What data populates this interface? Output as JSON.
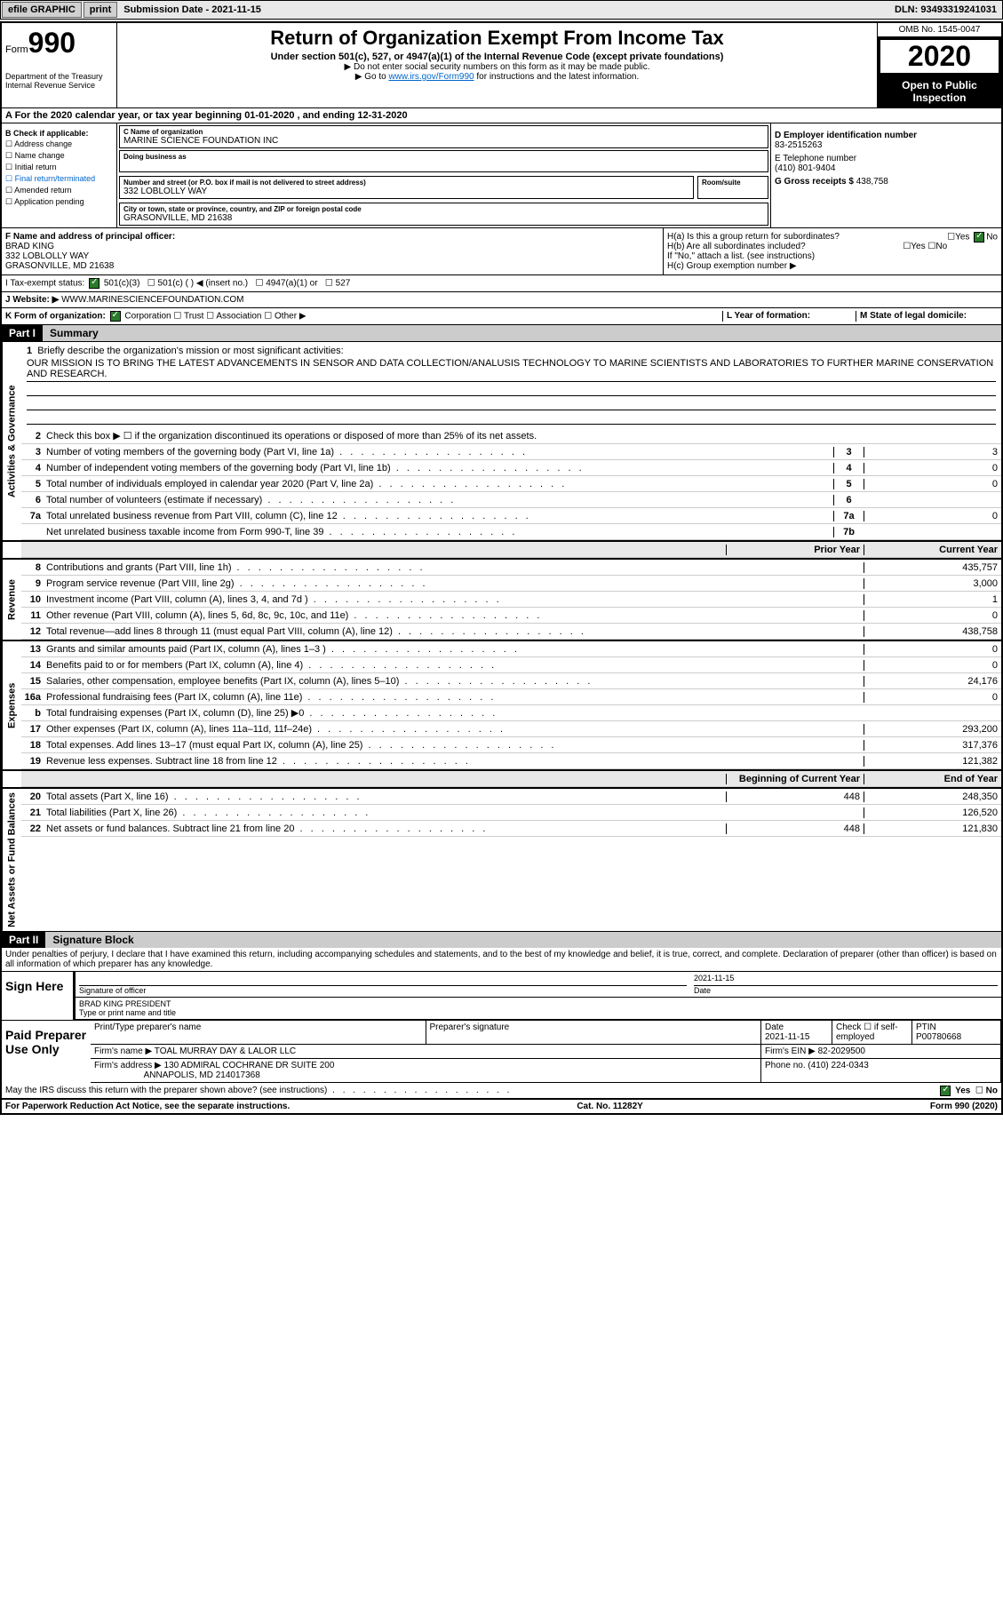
{
  "topbar": {
    "efile": "efile GRAPHIC",
    "print": "print",
    "sub_label": "Submission Date - 2021-11-15",
    "dln": "DLN: 93493319241031"
  },
  "header": {
    "form": "990",
    "form_prefix": "Form",
    "title": "Return of Organization Exempt From Income Tax",
    "subtitle": "Under section 501(c), 527, or 4947(a)(1) of the Internal Revenue Code (except private foundations)",
    "note1": "▶ Do not enter social security numbers on this form as it may be made public.",
    "note2_pre": "▶ Go to ",
    "note2_link": "www.irs.gov/Form990",
    "note2_post": " for instructions and the latest information.",
    "dept": "Department of the Treasury\nInternal Revenue Service",
    "omb": "OMB No. 1545-0047",
    "year": "2020",
    "open_pub": "Open to Public Inspection"
  },
  "row_a": "A For the 2020 calendar year, or tax year beginning 01-01-2020    , and ending 12-31-2020",
  "col_b": {
    "head": "B Check if applicable:",
    "items": [
      "Address change",
      "Name change",
      "Initial return",
      "Final return/terminated",
      "Amended return",
      "Application pending"
    ]
  },
  "col_c": {
    "name_label": "C Name of organization",
    "name": "MARINE SCIENCE FOUNDATION INC",
    "dba_label": "Doing business as",
    "addr_label": "Number and street (or P.O. box if mail is not delivered to street address)",
    "room_label": "Room/suite",
    "addr": "332 LOBLOLLY WAY",
    "city_label": "City or town, state or province, country, and ZIP or foreign postal code",
    "city": "GRASONVILLE, MD  21638"
  },
  "col_right": {
    "d_label": "D Employer identification number",
    "d_val": "83-2515263",
    "e_label": "E Telephone number",
    "e_val": "(410) 801-9404",
    "g_label": "G Gross receipts $ ",
    "g_val": "438,758"
  },
  "row_f": {
    "f_label": "F  Name and address of principal officer:",
    "f_name": "BRAD KING",
    "f_addr1": "332 LOBLOLLY WAY",
    "f_addr2": "GRASONVILLE, MD  21638",
    "ha": "H(a)  Is this a group return for subordinates?",
    "hb": "H(b)  Are all subordinates included?",
    "hb_note": "If \"No,\" attach a list. (see instructions)",
    "hc": "H(c)  Group exemption number ▶"
  },
  "status": {
    "i": "I    Tax-exempt status:",
    "opts": [
      "501(c)(3)",
      "501(c) (  ) ◀ (insert no.)",
      "4947(a)(1) or",
      "527"
    ],
    "j": "J    Website: ▶",
    "j_val": "WWW.MARINESCIENCEFOUNDATION.COM",
    "k": "K Form of organization:",
    "k_opts": [
      "Corporation",
      "Trust",
      "Association",
      "Other ▶"
    ],
    "l": "L Year of formation:",
    "m": "M State of legal domicile:"
  },
  "part1": {
    "part": "Part I",
    "title": "Summary",
    "q1": "Briefly describe the organization's mission or most significant activities:",
    "mission": "OUR MISSION IS TO BRING THE LATEST ADVANCEMENTS IN SENSOR AND DATA COLLECTION/ANALUSIS TECHNOLOGY TO MARINE SCIENTISTS AND LABORATORIES TO FURTHER MARINE CONSERVATION AND RESEARCH.",
    "q2": "Check this box ▶ ☐  if the organization discontinued its operations or disposed of more than 25% of its net assets.",
    "gov": "Activities & Governance",
    "rev": "Revenue",
    "exp": "Expenses",
    "net": "Net Assets or Fund Balances",
    "lines_gov": [
      {
        "n": "3",
        "t": "Number of voting members of the governing body (Part VI, line 1a)",
        "box": "3",
        "v": "3"
      },
      {
        "n": "4",
        "t": "Number of independent voting members of the governing body (Part VI, line 1b)",
        "box": "4",
        "v": "0"
      },
      {
        "n": "5",
        "t": "Total number of individuals employed in calendar year 2020 (Part V, line 2a)",
        "box": "5",
        "v": "0"
      },
      {
        "n": "6",
        "t": "Total number of volunteers (estimate if necessary)",
        "box": "6",
        "v": ""
      },
      {
        "n": "7a",
        "t": "Total unrelated business revenue from Part VIII, column (C), line 12",
        "box": "7a",
        "v": "0"
      },
      {
        "n": "",
        "t": "Net unrelated business taxable income from Form 990-T, line 39",
        "box": "7b",
        "v": ""
      }
    ],
    "col_hdr": {
      "py": "Prior Year",
      "cy": "Current Year",
      "by": "Beginning of Current Year",
      "ey": "End of Year"
    },
    "lines_rev": [
      {
        "n": "8",
        "t": "Contributions and grants (Part VIII, line 1h)",
        "py": "",
        "cy": "435,757"
      },
      {
        "n": "9",
        "t": "Program service revenue (Part VIII, line 2g)",
        "py": "",
        "cy": "3,000"
      },
      {
        "n": "10",
        "t": "Investment income (Part VIII, column (A), lines 3, 4, and 7d )",
        "py": "",
        "cy": "1"
      },
      {
        "n": "11",
        "t": "Other revenue (Part VIII, column (A), lines 5, 6d, 8c, 9c, 10c, and 11e)",
        "py": "",
        "cy": "0"
      },
      {
        "n": "12",
        "t": "Total revenue—add lines 8 through 11 (must equal Part VIII, column (A), line 12)",
        "py": "",
        "cy": "438,758"
      }
    ],
    "lines_exp": [
      {
        "n": "13",
        "t": "Grants and similar amounts paid (Part IX, column (A), lines 1–3 )",
        "py": "",
        "cy": "0"
      },
      {
        "n": "14",
        "t": "Benefits paid to or for members (Part IX, column (A), line 4)",
        "py": "",
        "cy": "0"
      },
      {
        "n": "15",
        "t": "Salaries, other compensation, employee benefits (Part IX, column (A), lines 5–10)",
        "py": "",
        "cy": "24,176"
      },
      {
        "n": "16a",
        "t": "Professional fundraising fees (Part IX, column (A), line 11e)",
        "py": "",
        "cy": "0"
      },
      {
        "n": "b",
        "t": "Total fundraising expenses (Part IX, column (D), line 25) ▶0",
        "py": "grey",
        "cy": "grey"
      },
      {
        "n": "17",
        "t": "Other expenses (Part IX, column (A), lines 11a–11d, 11f–24e)",
        "py": "",
        "cy": "293,200"
      },
      {
        "n": "18",
        "t": "Total expenses. Add lines 13–17 (must equal Part IX, column (A), line 25)",
        "py": "",
        "cy": "317,376"
      },
      {
        "n": "19",
        "t": "Revenue less expenses. Subtract line 18 from line 12",
        "py": "",
        "cy": "121,382"
      }
    ],
    "lines_net": [
      {
        "n": "20",
        "t": "Total assets (Part X, line 16)",
        "py": "448",
        "cy": "248,350"
      },
      {
        "n": "21",
        "t": "Total liabilities (Part X, line 26)",
        "py": "",
        "cy": "126,520"
      },
      {
        "n": "22",
        "t": "Net assets or fund balances. Subtract line 21 from line 20",
        "py": "448",
        "cy": "121,830"
      }
    ]
  },
  "part2": {
    "part": "Part II",
    "title": "Signature Block",
    "declare": "Under penalties of perjury, I declare that I have examined this return, including accompanying schedules and statements, and to the best of my knowledge and belief, it is true, correct, and complete. Declaration of preparer (other than officer) is based on all information of which preparer has any knowledge.",
    "sign": "Sign Here",
    "sig_of": "Signature of officer",
    "date": "Date",
    "sig_date": "2021-11-15",
    "name_title": "BRAD KING  PRESIDENT",
    "type_label": "Type or print name and title",
    "paid": "Paid Preparer Use Only",
    "prep_name": "Print/Type preparer's name",
    "prep_sig": "Preparer's signature",
    "prep_date_lbl": "Date",
    "prep_date": "2021-11-15",
    "check_self": "Check ☐ if self-employed",
    "ptin_lbl": "PTIN",
    "ptin": "P00780668",
    "firm_name_lbl": "Firm's name    ▶",
    "firm_name": "TOAL MURRAY DAY & LALOR LLC",
    "firm_ein_lbl": "Firm's EIN ▶",
    "firm_ein": "82-2029500",
    "firm_addr_lbl": "Firm's address ▶",
    "firm_addr": "130 ADMIRAL COCHRANE DR SUITE 200",
    "firm_city": "ANNAPOLIS, MD  214017368",
    "phone_lbl": "Phone no.",
    "phone": "(410) 224-0343",
    "may_irs": "May the IRS discuss this return with the preparer shown above? (see instructions)",
    "yes": "Yes",
    "no": "No"
  },
  "footer": {
    "left": "For Paperwork Reduction Act Notice, see the separate instructions.",
    "mid": "Cat. No. 11282Y",
    "right": "Form 990 (2020)"
  }
}
